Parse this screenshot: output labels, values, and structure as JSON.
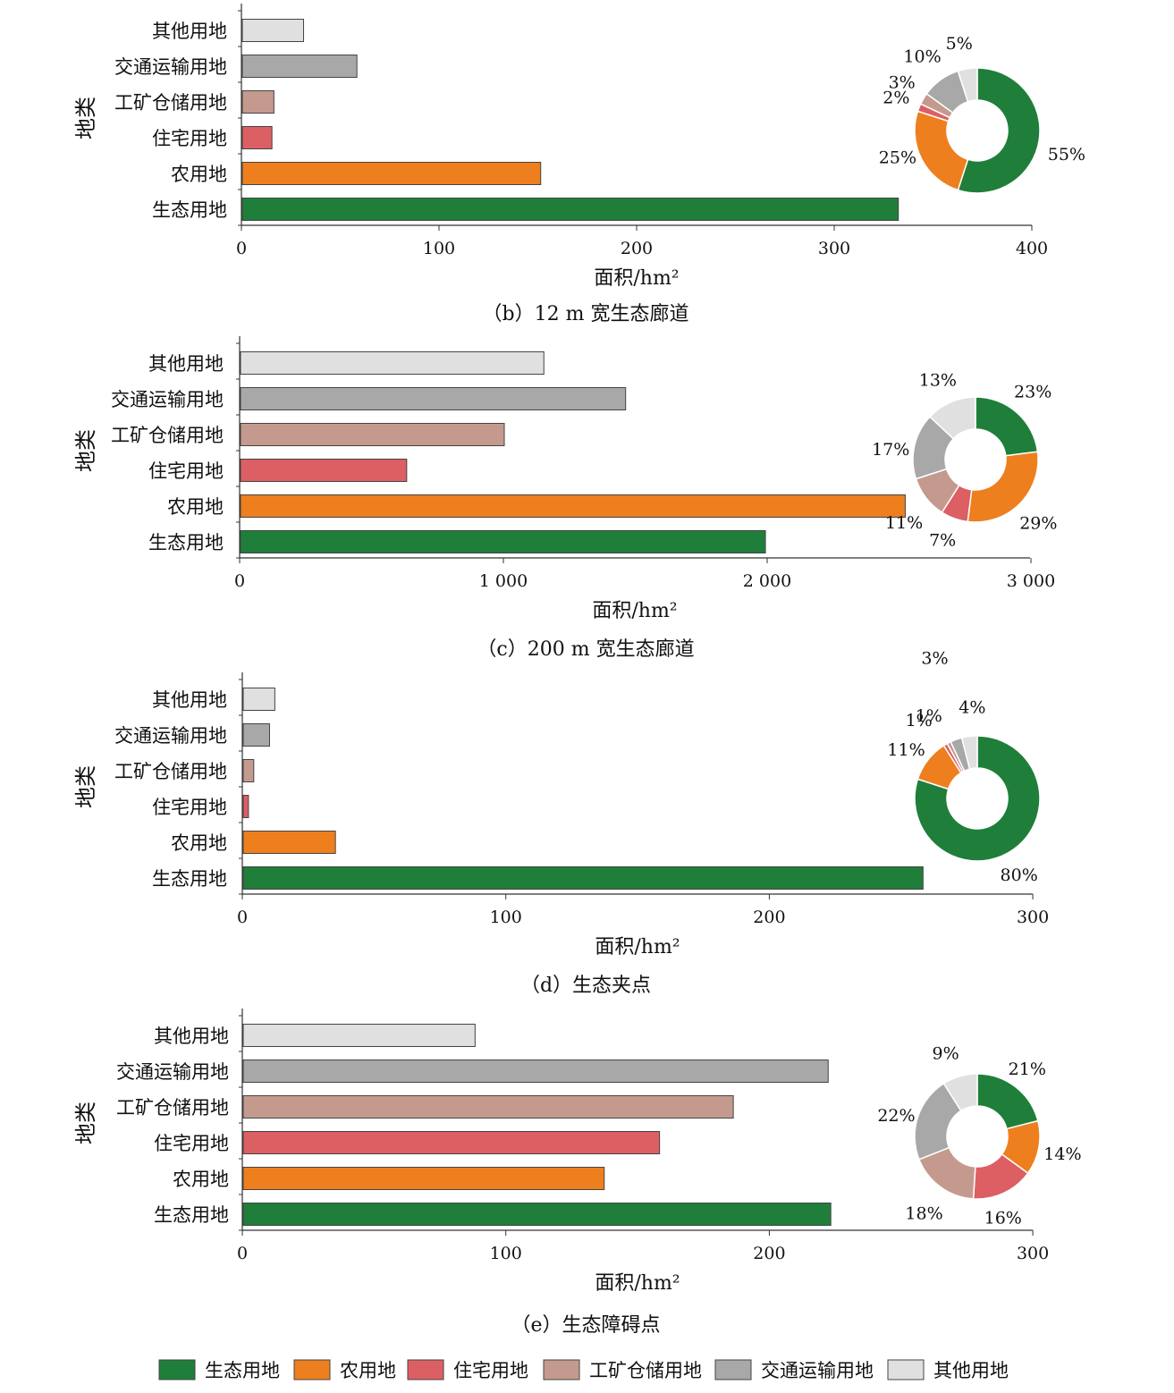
{
  "colors": {
    "生态用地": "#1f7f3a",
    "农用地": "#ee7f1e",
    "住宅用地": "#dc5f63",
    "工矿仓储用地": "#c49a8e",
    "交通运输用地": "#a8a8a8",
    "其他用地": "#e0e0e0"
  },
  "legend": [
    "生态用地",
    "农用地",
    "住宅用地",
    "工矿仓储用地",
    "交通运输用地",
    "其他用地"
  ],
  "chart_data": [
    {
      "type": "bar",
      "orientation": "horizontal",
      "caption": "（b）12 m 宽生态廊道",
      "ylabel": "地类",
      "xlabel": "面积/hm²",
      "categories": [
        "其他用地",
        "交通运输用地",
        "工矿仓储用地",
        "住宅用地",
        "农用地",
        "生态用地"
      ],
      "values": [
        31,
        58,
        16,
        15,
        151,
        332
      ],
      "xlim": [
        0,
        400
      ],
      "ticks": [
        0,
        100,
        200,
        300,
        400
      ],
      "tick_labels": [
        "0",
        "100",
        "200",
        "300",
        "400"
      ],
      "pie": {
        "type": "pie",
        "donut": true,
        "order": [
          "生态用地",
          "农用地",
          "住宅用地",
          "工矿仓储用地",
          "交通运输用地",
          "其他用地"
        ],
        "values": [
          55,
          25,
          2,
          3,
          10,
          5
        ],
        "labels": [
          "55%",
          "25%",
          "2%",
          "3%",
          "10%",
          "5%"
        ]
      }
    },
    {
      "type": "bar",
      "orientation": "horizontal",
      "caption": "（c）200 m 宽生态廊道",
      "ylabel": "地类",
      "xlabel": "面积/hm²",
      "categories": [
        "其他用地",
        "交通运输用地",
        "工矿仓储用地",
        "住宅用地",
        "农用地",
        "生态用地"
      ],
      "values": [
        1150,
        1460,
        1000,
        630,
        2520,
        1990
      ],
      "xlim": [
        0,
        3000
      ],
      "ticks": [
        0,
        1000,
        2000,
        3000
      ],
      "tick_labels": [
        "0",
        "1 000",
        "2 000",
        "3 000"
      ],
      "pie": {
        "type": "pie",
        "donut": true,
        "order": [
          "生态用地",
          "农用地",
          "住宅用地",
          "工矿仓储用地",
          "交通运输用地",
          "其他用地"
        ],
        "values": [
          23,
          29,
          7,
          11,
          17,
          13
        ],
        "labels": [
          "23%",
          "29%",
          "7%",
          "11%",
          "17%",
          "13%"
        ]
      }
    },
    {
      "type": "bar",
      "orientation": "horizontal",
      "caption": "（d）生态夹点",
      "ylabel": "地类",
      "xlabel": "面积/hm²",
      "categories": [
        "其他用地",
        "交通运输用地",
        "工矿仓储用地",
        "住宅用地",
        "农用地",
        "生态用地"
      ],
      "values": [
        12,
        10,
        4,
        2,
        35,
        258
      ],
      "xlim": [
        0,
        300
      ],
      "ticks": [
        0,
        100,
        200,
        300
      ],
      "tick_labels": [
        "0",
        "100",
        "200",
        "300"
      ],
      "pie": {
        "type": "pie",
        "donut": true,
        "order": [
          "生态用地",
          "农用地",
          "住宅用地",
          "工矿仓储用地",
          "交通运输用地",
          "其他用地"
        ],
        "values": [
          80,
          11,
          1,
          1,
          3,
          4
        ],
        "labels": [
          "80%",
          "11%",
          "1%",
          "1%",
          "3%",
          "4%"
        ]
      }
    },
    {
      "type": "bar",
      "orientation": "horizontal",
      "caption": "（e）生态障碍点",
      "ylabel": "地类",
      "xlabel": "面积/hm²",
      "categories": [
        "其他用地",
        "交通运输用地",
        "工矿仓储用地",
        "住宅用地",
        "农用地",
        "生态用地"
      ],
      "values": [
        88,
        222,
        186,
        158,
        137,
        223
      ],
      "xlim": [
        0,
        300
      ],
      "ticks": [
        0,
        100,
        200,
        300
      ],
      "tick_labels": [
        "0",
        "100",
        "200",
        "300"
      ],
      "pie": {
        "type": "pie",
        "donut": true,
        "order": [
          "生态用地",
          "农用地",
          "住宅用地",
          "工矿仓储用地",
          "交通运输用地",
          "其他用地"
        ],
        "values": [
          21,
          14,
          16,
          18,
          22,
          9
        ],
        "labels": [
          "21%",
          "14%",
          "16%",
          "18%",
          "22%",
          "9%"
        ]
      }
    }
  ]
}
